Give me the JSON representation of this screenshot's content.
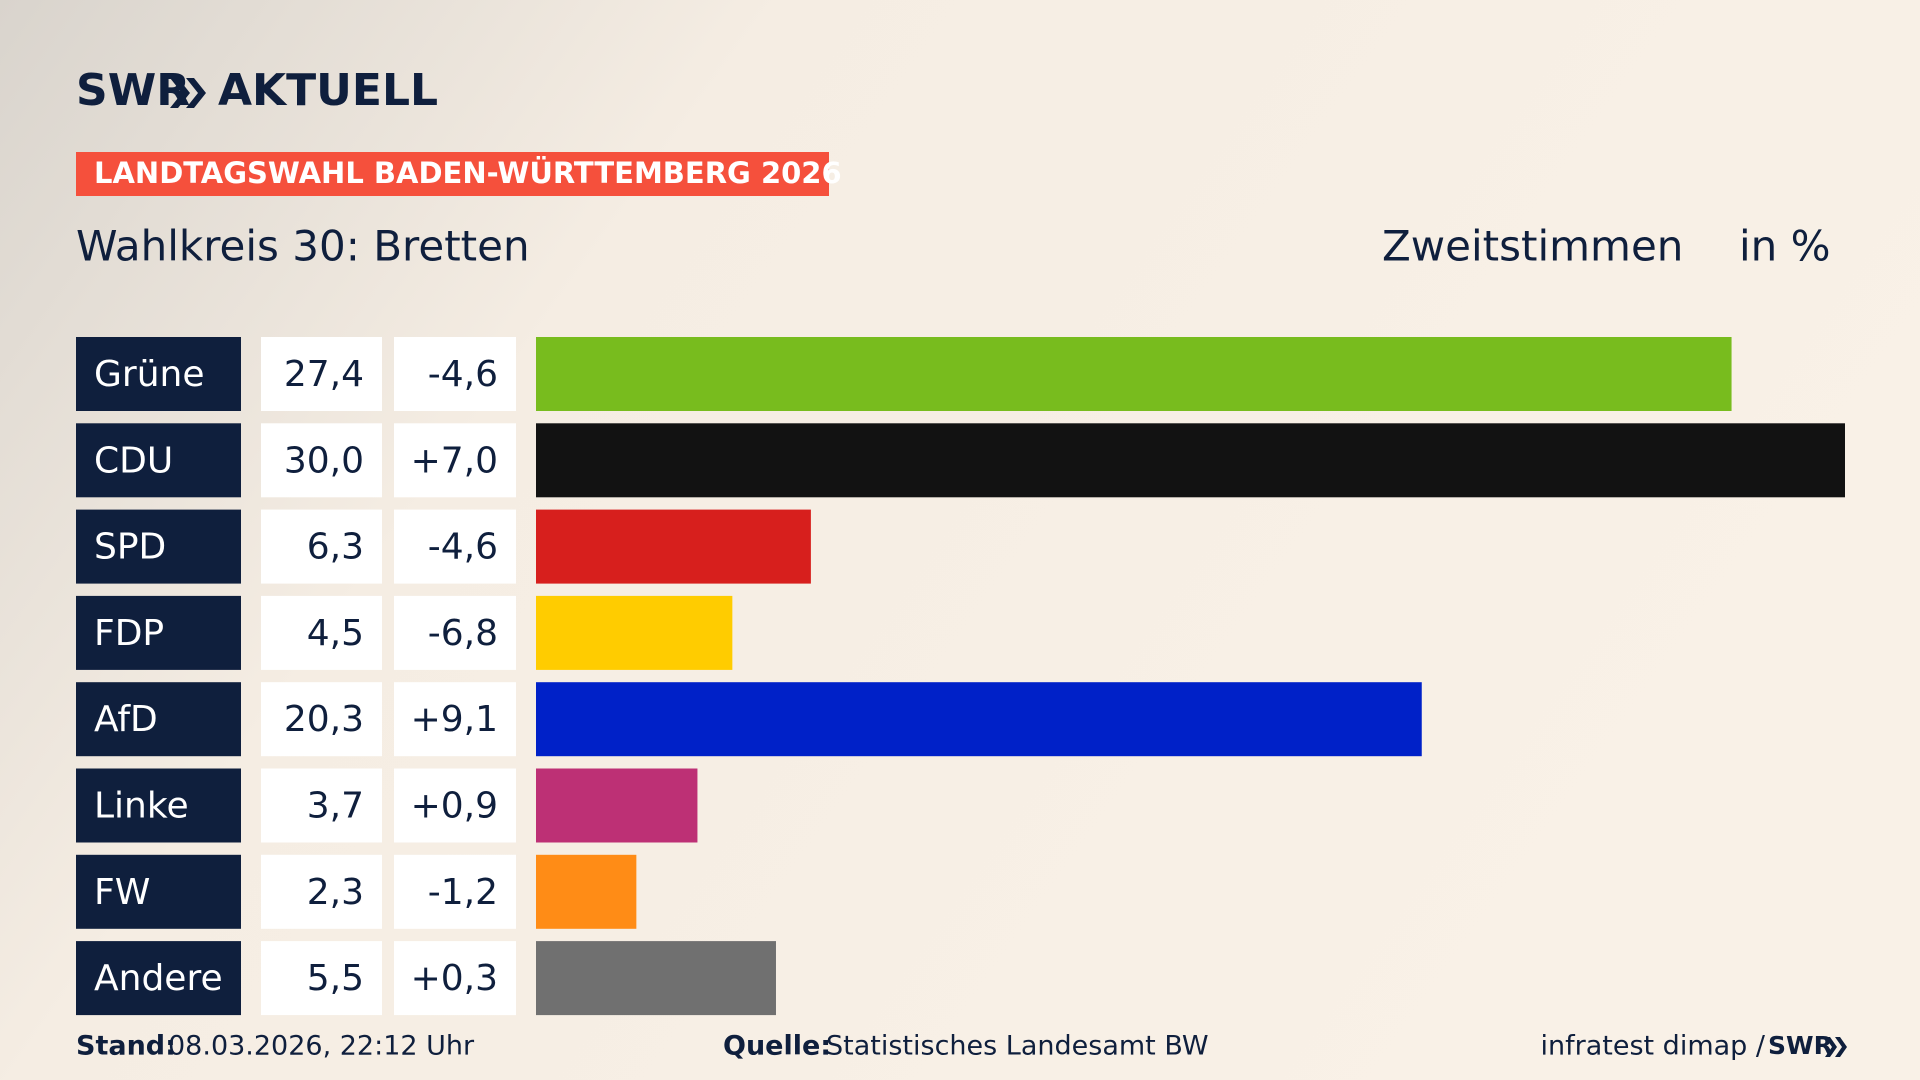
{
  "brand": {
    "logo": "SWR",
    "name": "AKTUELL"
  },
  "chart_data": {
    "type": "bar",
    "orientation": "horizontal",
    "header": "LANDTAGSWAHL BADEN-WÜRTTEMBERG 2026",
    "title": "Wahlkreis 30: Bretten",
    "measure": "Zweitstimmen",
    "unit": "in %",
    "categories": [
      "Grüne",
      "CDU",
      "SPD",
      "FDP",
      "AfD",
      "Linke",
      "FW",
      "Andere"
    ],
    "values": [
      27.4,
      30.0,
      6.3,
      4.5,
      20.3,
      3.7,
      2.3,
      5.5
    ],
    "value_labels": [
      "27,4",
      "30,0",
      "6,3",
      "4,5",
      "20,3",
      "3,7",
      "2,3",
      "5,5"
    ],
    "change_labels": [
      "-4,6",
      "+7,0",
      "-4,6",
      "-6,8",
      "+9,1",
      "+0,9",
      "-1,2",
      "+0,3"
    ],
    "colors": [
      "#78bc1e",
      "#121212",
      "#d71f1d",
      "#ffcc00",
      "#0021c8",
      "#bd3075",
      "#ff8c16",
      "#707070"
    ]
  },
  "footer": {
    "stand_label": "Stand:",
    "stand": "08.03.2026, 22:12 Uhr",
    "source_label": "Quelle:",
    "source": "Statistisches Landesamt BW",
    "credit": "infratest dimap /",
    "credit_brand": "SWR"
  }
}
